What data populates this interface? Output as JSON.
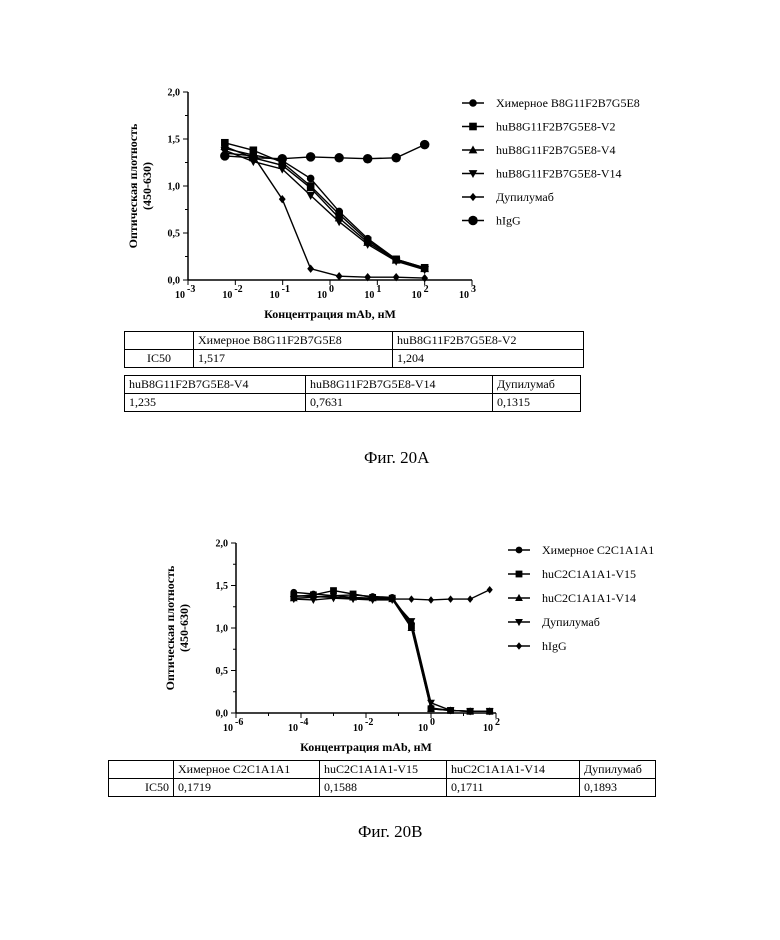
{
  "figA": {
    "caption": "Фиг. 20А",
    "chart_data": {
      "type": "line",
      "xlabel": "Концентрация mAb, нМ",
      "ylabel": "Оптическая плотность",
      "ylabel2": "(450-630)",
      "x_scale": "log",
      "xlim": [
        0.001,
        1000
      ],
      "ylim": [
        0,
        2.0
      ],
      "yticks": [
        "0,0",
        "0,5",
        "1,0",
        "1,5",
        "2,0"
      ],
      "xticks": [
        {
          "base": "10",
          "exp": "-3"
        },
        {
          "base": "10",
          "exp": "-2"
        },
        {
          "base": "10",
          "exp": "-1"
        },
        {
          "base": "10",
          "exp": "0"
        },
        {
          "base": "10",
          "exp": "1"
        },
        {
          "base": "10",
          "exp": "2"
        },
        {
          "base": "10",
          "exp": "3"
        }
      ],
      "legend_position": "right",
      "series": [
        {
          "name": "Химерное B8G11F2B7G5E8",
          "marker": "circle",
          "x": [
            0.006,
            0.024,
            0.098,
            0.39,
            1.56,
            6.25,
            25,
            100
          ],
          "y": [
            1.4,
            1.33,
            1.27,
            1.08,
            0.73,
            0.44,
            0.22,
            0.13
          ]
        },
        {
          "name": "huB8G11F2B7G5E8-V2",
          "marker": "square",
          "x": [
            0.006,
            0.024,
            0.098,
            0.39,
            1.56,
            6.25,
            25,
            100
          ],
          "y": [
            1.46,
            1.38,
            1.25,
            1.0,
            0.7,
            0.42,
            0.22,
            0.13
          ]
        },
        {
          "name": "huB8G11F2B7G5E8-V4",
          "marker": "triangle-up",
          "x": [
            0.006,
            0.024,
            0.098,
            0.39,
            1.56,
            6.25,
            25,
            100
          ],
          "y": [
            1.42,
            1.3,
            1.22,
            0.98,
            0.66,
            0.4,
            0.21,
            0.12
          ]
        },
        {
          "name": "huB8G11F2B7G5E8-V14",
          "marker": "triangle-down",
          "x": [
            0.006,
            0.024,
            0.098,
            0.39,
            1.56,
            6.25,
            25,
            100
          ],
          "y": [
            1.38,
            1.26,
            1.18,
            0.9,
            0.62,
            0.38,
            0.2,
            0.11
          ]
        },
        {
          "name": "Дупилумаб",
          "marker": "diamond",
          "x": [
            0.006,
            0.024,
            0.098,
            0.39,
            1.56,
            6.25,
            25,
            100
          ],
          "y": [
            1.35,
            1.32,
            0.86,
            0.12,
            0.04,
            0.03,
            0.03,
            0.02
          ]
        },
        {
          "name": "hIgG",
          "marker": "circle-large",
          "x": [
            0.006,
            0.024,
            0.098,
            0.39,
            1.56,
            6.25,
            25,
            100
          ],
          "y": [
            1.32,
            1.3,
            1.29,
            1.31,
            1.3,
            1.29,
            1.3,
            1.44
          ]
        }
      ]
    },
    "table1": {
      "headers": [
        "",
        "Химерное B8G11F2B7G5E8",
        "huB8G11F2B7G5E8-V2"
      ],
      "row": [
        "IC50",
        "1,517",
        "1,204"
      ]
    },
    "table2": {
      "headers": [
        "huB8G11F2B7G5E8-V4",
        "huB8G11F2B7G5E8-V14",
        "Дупилумаб"
      ],
      "row": [
        "1,235",
        "0,7631",
        "0,1315"
      ]
    }
  },
  "figB": {
    "caption": "Фиг. 20В",
    "chart_data": {
      "type": "line",
      "xlabel": "Концентрация mAb, нМ",
      "ylabel": "Оптическая плотность",
      "ylabel2": "(450-630)",
      "x_scale": "log",
      "xlim": [
        1e-06,
        100
      ],
      "ylim": [
        0,
        2.0
      ],
      "yticks": [
        "0,0",
        "0,5",
        "1,0",
        "1,5",
        "2,0"
      ],
      "xticks": [
        {
          "base": "10",
          "exp": "-6"
        },
        {
          "base": "10",
          "exp": "-4"
        },
        {
          "base": "10",
          "exp": "-2"
        },
        {
          "base": "10",
          "exp": "0"
        },
        {
          "base": "10",
          "exp": "2"
        }
      ],
      "legend_position": "right",
      "series": [
        {
          "name": "Химерное C2C1A1A1",
          "marker": "circle",
          "x": [
            6e-05,
            0.00024,
            0.001,
            0.004,
            0.016,
            0.064,
            0.25,
            1,
            4,
            16,
            64
          ],
          "y": [
            1.42,
            1.4,
            1.38,
            1.39,
            1.37,
            1.36,
            1.05,
            0.06,
            0.03,
            0.02,
            0.02
          ]
        },
        {
          "name": "huC2C1A1A1-V15",
          "marker": "square",
          "x": [
            6e-05,
            0.00024,
            0.001,
            0.004,
            0.016,
            0.064,
            0.25,
            1,
            4,
            16,
            64
          ],
          "y": [
            1.37,
            1.39,
            1.44,
            1.4,
            1.36,
            1.35,
            1.02,
            0.05,
            0.03,
            0.02,
            0.02
          ]
        },
        {
          "name": "huC2C1A1A1-V14",
          "marker": "triangle-up",
          "x": [
            6e-05,
            0.00024,
            0.001,
            0.004,
            0.016,
            0.064,
            0.25,
            1,
            4,
            16,
            64
          ],
          "y": [
            1.35,
            1.36,
            1.38,
            1.36,
            1.35,
            1.34,
            1.0,
            0.05,
            0.03,
            0.02,
            0.02
          ]
        },
        {
          "name": "Дупилумаб",
          "marker": "triangle-down",
          "x": [
            6e-05,
            0.00024,
            0.001,
            0.004,
            0.016,
            0.064,
            0.25,
            1,
            4,
            16,
            64
          ],
          "y": [
            1.34,
            1.33,
            1.35,
            1.34,
            1.33,
            1.33,
            1.08,
            0.12,
            0.03,
            0.02,
            0.02
          ]
        },
        {
          "name": "hIgG",
          "marker": "diamond",
          "x": [
            6e-05,
            0.00024,
            0.001,
            0.004,
            0.016,
            0.064,
            0.25,
            1,
            4,
            16,
            64
          ],
          "y": [
            1.38,
            1.37,
            1.36,
            1.35,
            1.34,
            1.34,
            1.34,
            1.33,
            1.34,
            1.34,
            1.45
          ]
        }
      ]
    },
    "table": {
      "headers": [
        "",
        "Химерное C2C1A1A1",
        "huC2C1A1A1-V15",
        "huC2C1A1A1-V14",
        "Дупилумаб"
      ],
      "row": [
        "IC50",
        "0,1719",
        "0,1588",
        "0,1711",
        "0,1893"
      ]
    }
  }
}
